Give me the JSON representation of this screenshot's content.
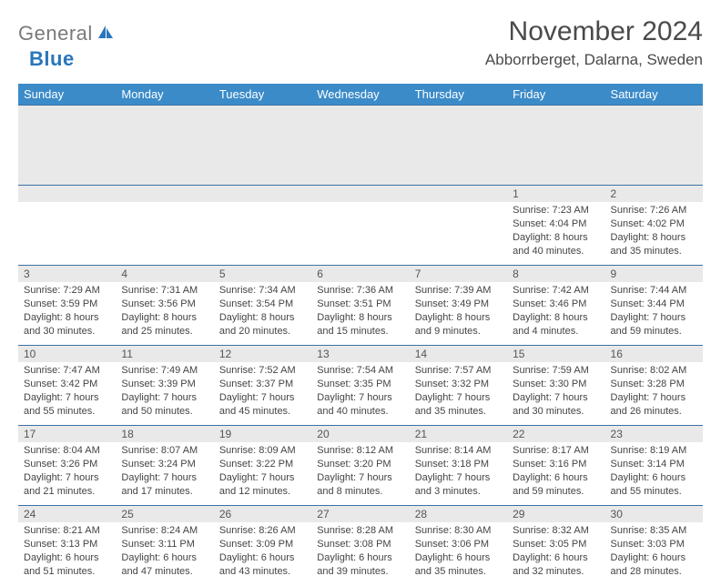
{
  "logo": {
    "text_gray": "General",
    "text_blue": "Blue"
  },
  "header": {
    "month": "November 2024",
    "location": "Abborrberget, Dalarna, Sweden"
  },
  "colors": {
    "header_bg": "#3b8bc9",
    "header_text": "#ffffff",
    "day_bg": "#e9e9e9",
    "row_border": "#3b72a5",
    "logo_gray": "#7a7a7a",
    "logo_blue": "#2876bb"
  },
  "daynames": [
    "Sunday",
    "Monday",
    "Tuesday",
    "Wednesday",
    "Thursday",
    "Friday",
    "Saturday"
  ],
  "weeks": [
    [
      {
        "num": "",
        "lines": []
      },
      {
        "num": "",
        "lines": []
      },
      {
        "num": "",
        "lines": []
      },
      {
        "num": "",
        "lines": []
      },
      {
        "num": "",
        "lines": []
      },
      {
        "num": "1",
        "lines": [
          "Sunrise: 7:23 AM",
          "Sunset: 4:04 PM",
          "Daylight: 8 hours",
          "and 40 minutes."
        ]
      },
      {
        "num": "2",
        "lines": [
          "Sunrise: 7:26 AM",
          "Sunset: 4:02 PM",
          "Daylight: 8 hours",
          "and 35 minutes."
        ]
      }
    ],
    [
      {
        "num": "3",
        "lines": [
          "Sunrise: 7:29 AM",
          "Sunset: 3:59 PM",
          "Daylight: 8 hours",
          "and 30 minutes."
        ]
      },
      {
        "num": "4",
        "lines": [
          "Sunrise: 7:31 AM",
          "Sunset: 3:56 PM",
          "Daylight: 8 hours",
          "and 25 minutes."
        ]
      },
      {
        "num": "5",
        "lines": [
          "Sunrise: 7:34 AM",
          "Sunset: 3:54 PM",
          "Daylight: 8 hours",
          "and 20 minutes."
        ]
      },
      {
        "num": "6",
        "lines": [
          "Sunrise: 7:36 AM",
          "Sunset: 3:51 PM",
          "Daylight: 8 hours",
          "and 15 minutes."
        ]
      },
      {
        "num": "7",
        "lines": [
          "Sunrise: 7:39 AM",
          "Sunset: 3:49 PM",
          "Daylight: 8 hours",
          "and 9 minutes."
        ]
      },
      {
        "num": "8",
        "lines": [
          "Sunrise: 7:42 AM",
          "Sunset: 3:46 PM",
          "Daylight: 8 hours",
          "and 4 minutes."
        ]
      },
      {
        "num": "9",
        "lines": [
          "Sunrise: 7:44 AM",
          "Sunset: 3:44 PM",
          "Daylight: 7 hours",
          "and 59 minutes."
        ]
      }
    ],
    [
      {
        "num": "10",
        "lines": [
          "Sunrise: 7:47 AM",
          "Sunset: 3:42 PM",
          "Daylight: 7 hours",
          "and 55 minutes."
        ]
      },
      {
        "num": "11",
        "lines": [
          "Sunrise: 7:49 AM",
          "Sunset: 3:39 PM",
          "Daylight: 7 hours",
          "and 50 minutes."
        ]
      },
      {
        "num": "12",
        "lines": [
          "Sunrise: 7:52 AM",
          "Sunset: 3:37 PM",
          "Daylight: 7 hours",
          "and 45 minutes."
        ]
      },
      {
        "num": "13",
        "lines": [
          "Sunrise: 7:54 AM",
          "Sunset: 3:35 PM",
          "Daylight: 7 hours",
          "and 40 minutes."
        ]
      },
      {
        "num": "14",
        "lines": [
          "Sunrise: 7:57 AM",
          "Sunset: 3:32 PM",
          "Daylight: 7 hours",
          "and 35 minutes."
        ]
      },
      {
        "num": "15",
        "lines": [
          "Sunrise: 7:59 AM",
          "Sunset: 3:30 PM",
          "Daylight: 7 hours",
          "and 30 minutes."
        ]
      },
      {
        "num": "16",
        "lines": [
          "Sunrise: 8:02 AM",
          "Sunset: 3:28 PM",
          "Daylight: 7 hours",
          "and 26 minutes."
        ]
      }
    ],
    [
      {
        "num": "17",
        "lines": [
          "Sunrise: 8:04 AM",
          "Sunset: 3:26 PM",
          "Daylight: 7 hours",
          "and 21 minutes."
        ]
      },
      {
        "num": "18",
        "lines": [
          "Sunrise: 8:07 AM",
          "Sunset: 3:24 PM",
          "Daylight: 7 hours",
          "and 17 minutes."
        ]
      },
      {
        "num": "19",
        "lines": [
          "Sunrise: 8:09 AM",
          "Sunset: 3:22 PM",
          "Daylight: 7 hours",
          "and 12 minutes."
        ]
      },
      {
        "num": "20",
        "lines": [
          "Sunrise: 8:12 AM",
          "Sunset: 3:20 PM",
          "Daylight: 7 hours",
          "and 8 minutes."
        ]
      },
      {
        "num": "21",
        "lines": [
          "Sunrise: 8:14 AM",
          "Sunset: 3:18 PM",
          "Daylight: 7 hours",
          "and 3 minutes."
        ]
      },
      {
        "num": "22",
        "lines": [
          "Sunrise: 8:17 AM",
          "Sunset: 3:16 PM",
          "Daylight: 6 hours",
          "and 59 minutes."
        ]
      },
      {
        "num": "23",
        "lines": [
          "Sunrise: 8:19 AM",
          "Sunset: 3:14 PM",
          "Daylight: 6 hours",
          "and 55 minutes."
        ]
      }
    ],
    [
      {
        "num": "24",
        "lines": [
          "Sunrise: 8:21 AM",
          "Sunset: 3:13 PM",
          "Daylight: 6 hours",
          "and 51 minutes."
        ]
      },
      {
        "num": "25",
        "lines": [
          "Sunrise: 8:24 AM",
          "Sunset: 3:11 PM",
          "Daylight: 6 hours",
          "and 47 minutes."
        ]
      },
      {
        "num": "26",
        "lines": [
          "Sunrise: 8:26 AM",
          "Sunset: 3:09 PM",
          "Daylight: 6 hours",
          "and 43 minutes."
        ]
      },
      {
        "num": "27",
        "lines": [
          "Sunrise: 8:28 AM",
          "Sunset: 3:08 PM",
          "Daylight: 6 hours",
          "and 39 minutes."
        ]
      },
      {
        "num": "28",
        "lines": [
          "Sunrise: 8:30 AM",
          "Sunset: 3:06 PM",
          "Daylight: 6 hours",
          "and 35 minutes."
        ]
      },
      {
        "num": "29",
        "lines": [
          "Sunrise: 8:32 AM",
          "Sunset: 3:05 PM",
          "Daylight: 6 hours",
          "and 32 minutes."
        ]
      },
      {
        "num": "30",
        "lines": [
          "Sunrise: 8:35 AM",
          "Sunset: 3:03 PM",
          "Daylight: 6 hours",
          "and 28 minutes."
        ]
      }
    ]
  ]
}
